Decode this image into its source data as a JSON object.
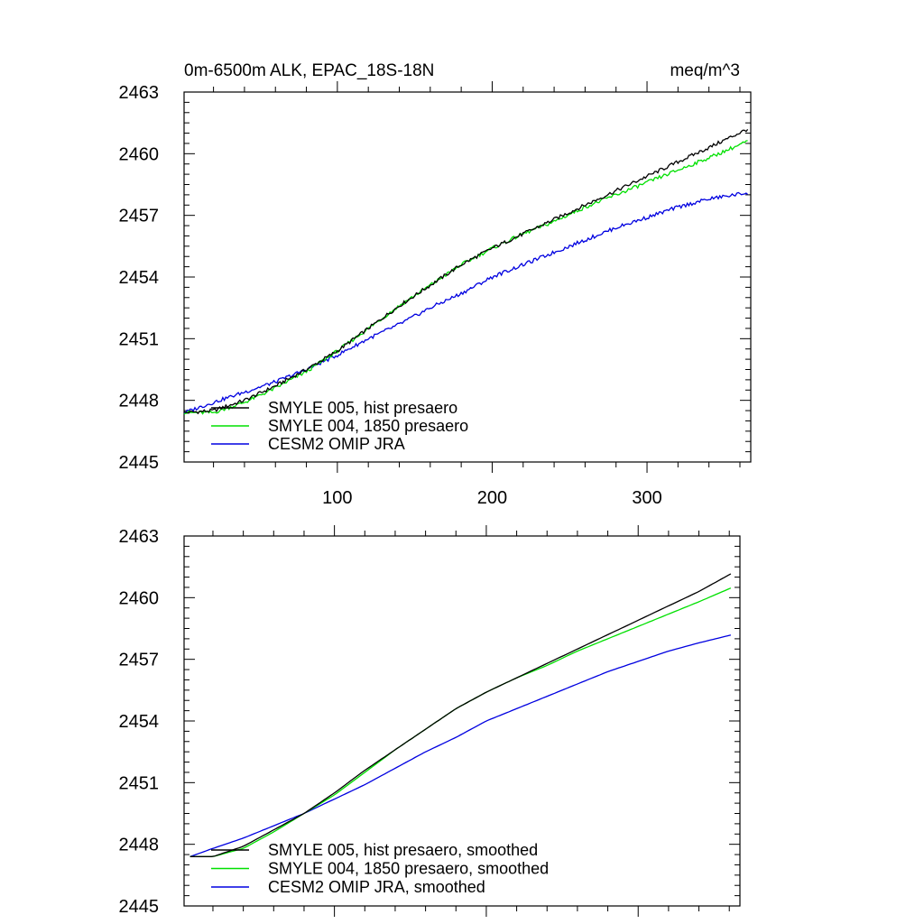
{
  "chart_data": [
    {
      "type": "line",
      "title": "0m-6500m ALK, EPAC_18S-18N",
      "units": "meq/m^3",
      "xlabel": "",
      "ylabel": "",
      "xlim": [
        1,
        367
      ],
      "ylim": [
        2445,
        2463
      ],
      "xticks": [
        100,
        200,
        300
      ],
      "yticks": [
        2445,
        2448,
        2451,
        2454,
        2457,
        2460,
        2463
      ],
      "x": [
        1,
        20,
        40,
        60,
        80,
        100,
        120,
        140,
        160,
        180,
        200,
        220,
        240,
        260,
        280,
        300,
        320,
        340,
        365
      ],
      "series": [
        {
          "name": "SMYLE 005, hist presaero",
          "color": "#000000",
          "values": [
            2447.4,
            2447.5,
            2448.0,
            2448.7,
            2449.5,
            2450.4,
            2451.5,
            2452.6,
            2453.6,
            2454.6,
            2455.4,
            2456.1,
            2456.8,
            2457.5,
            2458.2,
            2458.9,
            2459.6,
            2460.3,
            2461.2
          ]
        },
        {
          "name": "SMYLE 004, 1850 presaero",
          "color": "#00e000",
          "values": [
            2447.4,
            2447.4,
            2447.9,
            2448.6,
            2449.4,
            2450.4,
            2451.5,
            2452.6,
            2453.6,
            2454.6,
            2455.4,
            2456.1,
            2456.7,
            2457.4,
            2458.0,
            2458.6,
            2459.2,
            2459.8,
            2460.6
          ]
        },
        {
          "name": "CESM2 OMIP JRA",
          "color": "#0000e0",
          "values": [
            2447.4,
            2447.9,
            2448.4,
            2448.9,
            2449.5,
            2450.2,
            2451.0,
            2451.7,
            2452.5,
            2453.2,
            2454.0,
            2454.6,
            2455.2,
            2455.8,
            2456.4,
            2456.9,
            2457.4,
            2457.8,
            2458.1
          ]
        }
      ]
    },
    {
      "type": "line",
      "title": "",
      "xlabel": "",
      "ylabel": "",
      "xlim": [
        1,
        367
      ],
      "ylim": [
        2445,
        2463
      ],
      "xticks": [
        100,
        200,
        300
      ],
      "yticks": [
        2445,
        2448,
        2451,
        2454,
        2457,
        2460,
        2463
      ],
      "x": [
        5,
        20,
        40,
        60,
        80,
        100,
        120,
        140,
        160,
        180,
        200,
        220,
        240,
        260,
        280,
        300,
        320,
        340,
        362
      ],
      "series": [
        {
          "name": "SMYLE 005, hist presaero, smoothed",
          "color": "#000000",
          "values": [
            2447.4,
            2447.4,
            2447.9,
            2448.7,
            2449.5,
            2450.5,
            2451.6,
            2452.6,
            2453.6,
            2454.6,
            2455.4,
            2456.1,
            2456.8,
            2457.5,
            2458.2,
            2458.9,
            2459.6,
            2460.3,
            2461.2
          ]
        },
        {
          "name": "SMYLE 004, 1850 presaero, smoothed",
          "color": "#00e000",
          "values": [
            2447.4,
            2447.4,
            2447.8,
            2448.6,
            2449.5,
            2450.4,
            2451.5,
            2452.6,
            2453.6,
            2454.6,
            2455.4,
            2456.1,
            2456.7,
            2457.4,
            2458.0,
            2458.6,
            2459.2,
            2459.8,
            2460.5
          ]
        },
        {
          "name": "CESM2 OMIP JRA, smoothed",
          "color": "#0000e0",
          "values": [
            2447.4,
            2447.8,
            2448.3,
            2448.9,
            2449.5,
            2450.2,
            2450.9,
            2451.7,
            2452.5,
            2453.2,
            2454.0,
            2454.6,
            2455.2,
            2455.8,
            2456.4,
            2456.9,
            2457.4,
            2457.8,
            2458.2
          ]
        }
      ]
    }
  ]
}
